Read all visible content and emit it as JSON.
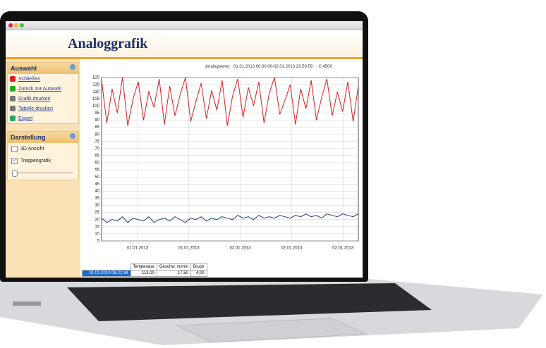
{
  "header": {
    "title": "Analoggrafik"
  },
  "sidebar": {
    "sections": [
      {
        "title": "Auswahl",
        "items": [
          "Schließen",
          "Zurück zur Auswahl",
          "Grafik drucken",
          "Tabelle drucken",
          "Export"
        ]
      },
      {
        "title": "Darstellung",
        "options": [
          {
            "label": "3D Ansicht",
            "checked": false
          },
          {
            "label": "Treppengrafik",
            "checked": true
          }
        ]
      }
    ]
  },
  "chart": {
    "type": "line",
    "subtitle": "Analogwerte:   01.01.2013 00:00:00-02.01.2013 23:59:59   : C 4500",
    "ylim": [
      5,
      120
    ],
    "yticks": [
      5,
      10,
      15,
      20,
      25,
      30,
      35,
      40,
      45,
      50,
      55,
      60,
      65,
      70,
      75,
      80,
      85,
      90,
      95,
      100,
      105,
      110,
      115,
      120
    ],
    "categories": [
      "01.01.2013",
      "01.01.2013",
      "02.01.2013",
      "02.01.2013",
      "02.01.2013"
    ],
    "grid": true,
    "series": [
      {
        "color": "#d42020",
        "values": [
          118,
          88,
          112,
          95,
          120,
          86,
          105,
          117,
          90,
          110,
          99,
          119,
          87,
          114,
          93,
          108,
          120,
          89,
          103,
          116,
          91,
          111,
          97,
          118,
          86,
          107,
          119,
          92,
          113,
          100,
          117,
          88,
          109,
          120,
          94,
          104,
          115,
          87,
          112,
          98,
          118,
          90,
          106,
          119,
          93,
          110,
          96,
          117,
          89,
          114
        ]
      },
      {
        "color": "#1f3f7a",
        "values": [
          21,
          18,
          20,
          19,
          22,
          18,
          21,
          20,
          19,
          22,
          18,
          20,
          21,
          19,
          22,
          20,
          18,
          21,
          20,
          22,
          19,
          21,
          20,
          22,
          21,
          20,
          23,
          21,
          22,
          20,
          23,
          21,
          22,
          21,
          23,
          22,
          21,
          23,
          22,
          24,
          22,
          23,
          21,
          24,
          23,
          22,
          24,
          23,
          22,
          24
        ]
      }
    ]
  },
  "table": {
    "columns": [
      "Temperatur",
      "Geschw. m/min",
      "Druck"
    ],
    "rows": [
      [
        "01.01.2013 06:21:34",
        "113,00",
        "17,50",
        "4,00"
      ]
    ]
  }
}
